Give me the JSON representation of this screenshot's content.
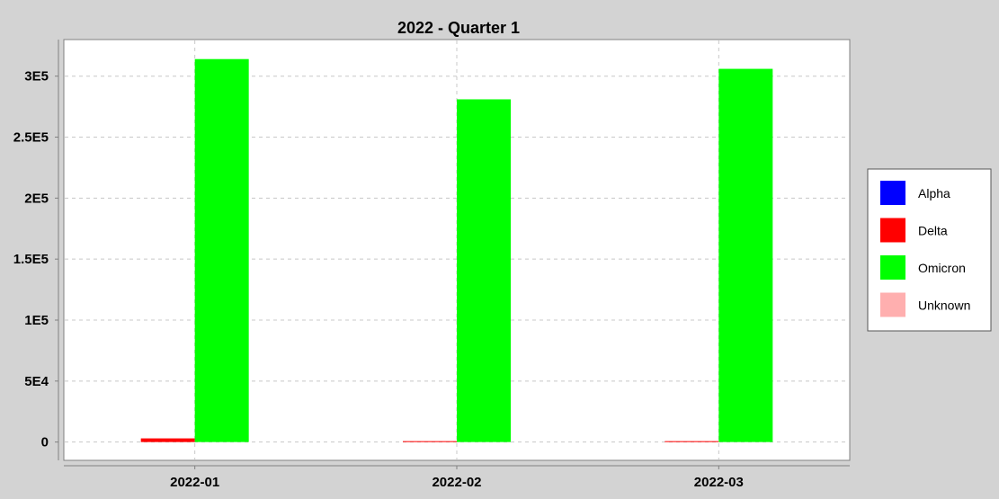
{
  "chart_data": {
    "type": "bar",
    "title": "2022 - Quarter 1",
    "xlabel": "",
    "ylabel": "",
    "categories": [
      "2022-01",
      "2022-02",
      "2022-03"
    ],
    "series": [
      {
        "name": "Alpha",
        "color": "#0000ff",
        "values": [
          0,
          0,
          0
        ]
      },
      {
        "name": "Delta",
        "color": "#ff0000",
        "values": [
          3000,
          200,
          100
        ]
      },
      {
        "name": "Omicron",
        "color": "#00ff00",
        "values": [
          314000,
          281000,
          306000
        ]
      },
      {
        "name": "Unknown",
        "color": "#ffafaf",
        "values": [
          0,
          0,
          0
        ]
      }
    ],
    "ylim": [
      -15000,
      330000
    ],
    "yticks": [
      0,
      50000,
      100000,
      150000,
      200000,
      250000,
      300000
    ],
    "ytick_labels": [
      "0",
      "5E4",
      "1E5",
      "1.5E5",
      "2E5",
      "2.5E5",
      "3E5"
    ],
    "grid": true,
    "legend_position": "right"
  }
}
